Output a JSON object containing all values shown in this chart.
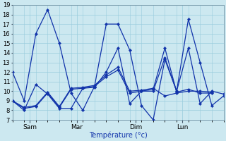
{
  "background_color": "#cce8f0",
  "grid_color": "#99ccdd",
  "line_color": "#1133aa",
  "marker_color": "#1133aa",
  "xlabel": "Température (°c)",
  "ylim": [
    7,
    19
  ],
  "yticks": [
    7,
    8,
    9,
    10,
    11,
    12,
    13,
    14,
    15,
    16,
    17,
    18,
    19
  ],
  "xlim": [
    0,
    18
  ],
  "x_tick_labels": [
    "Sam",
    "Mar",
    "Dim",
    "Lun"
  ],
  "x_tick_positions": [
    1.5,
    5.5,
    10.5,
    14.5
  ],
  "series": [
    {
      "x": [
        0,
        1,
        2,
        3,
        4,
        5,
        6,
        7,
        8,
        9,
        10,
        11,
        12,
        13,
        14,
        15,
        16,
        17,
        18
      ],
      "y": [
        12,
        9,
        16,
        18.5,
        15,
        9.8,
        8,
        10.5,
        17,
        17,
        14.3,
        8.5,
        7,
        13.3,
        10,
        17.5,
        13,
        8.5,
        9.5
      ]
    },
    {
      "x": [
        0,
        1,
        2,
        3,
        4,
        5,
        6,
        7,
        8,
        9,
        10,
        11,
        12,
        13,
        14,
        15,
        16,
        17,
        18
      ],
      "y": [
        9,
        8,
        10.7,
        9.7,
        8.2,
        8.2,
        10.3,
        10.4,
        12,
        14.5,
        8.7,
        10,
        10,
        13.5,
        10,
        14.5,
        8.7,
        10,
        9.7
      ]
    },
    {
      "x": [
        0,
        1,
        2,
        3,
        4,
        5,
        6,
        7,
        8,
        9,
        10,
        11,
        12,
        13,
        14,
        15,
        16,
        17
      ],
      "y": [
        9,
        8.2,
        8.4,
        9.8,
        8.3,
        10.2,
        10.3,
        10.5,
        11.5,
        12.2,
        9.8,
        10,
        10.2,
        14.5,
        9.9,
        10.2,
        9.8,
        9.8
      ]
    },
    {
      "x": [
        0,
        1,
        2,
        3,
        4,
        5,
        6,
        7,
        8,
        9,
        10,
        11,
        12,
        13,
        14,
        15,
        16,
        17
      ],
      "y": [
        9,
        8.3,
        8.5,
        9.9,
        8.4,
        10.3,
        10.4,
        10.6,
        11.7,
        12.5,
        10.0,
        10.1,
        10.3,
        9.5,
        9.8,
        10.0,
        10.0,
        9.9
      ]
    }
  ],
  "figsize": [
    3.2,
    2.0
  ],
  "dpi": 100
}
